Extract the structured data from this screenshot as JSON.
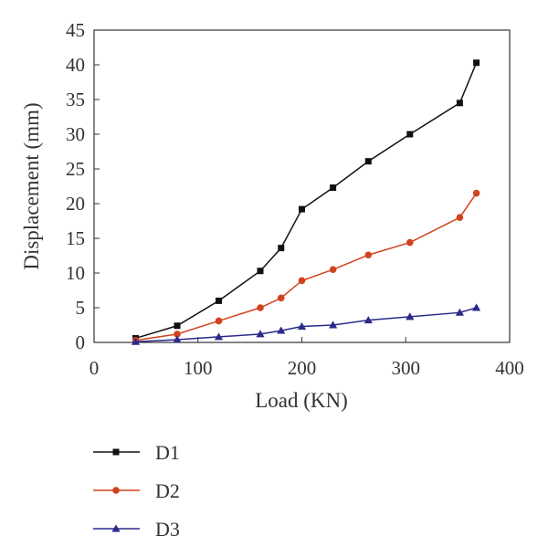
{
  "chart_data": {
    "type": "line",
    "xlabel": "Load (KN)",
    "ylabel": "Displacement (mm)",
    "xlim": [
      0,
      400
    ],
    "ylim": [
      0,
      45
    ],
    "xticks": [
      0,
      100,
      200,
      300,
      400
    ],
    "yticks": [
      0,
      5,
      10,
      15,
      20,
      25,
      30,
      35,
      40,
      45
    ],
    "grid": false,
    "legend_position": "bottom",
    "series": [
      {
        "name": "D1",
        "color": "#111111",
        "marker": "square",
        "x": [
          40,
          80,
          120,
          160,
          180,
          200,
          230,
          264,
          304,
          352,
          368
        ],
        "y": [
          0.6,
          2.4,
          6.0,
          10.3,
          13.6,
          19.2,
          22.3,
          26.1,
          30.0,
          34.5,
          40.3
        ]
      },
      {
        "name": "D2",
        "color": "#d0431e",
        "marker": "circle",
        "x": [
          40,
          80,
          120,
          160,
          180,
          200,
          230,
          264,
          304,
          352,
          368
        ],
        "y": [
          0.3,
          1.2,
          3.1,
          5.0,
          6.4,
          8.9,
          10.5,
          12.6,
          14.4,
          18.0,
          21.5
        ]
      },
      {
        "name": "D3",
        "color": "#2b2a8a",
        "marker": "triangle",
        "x": [
          40,
          80,
          120,
          160,
          180,
          200,
          230,
          264,
          304,
          352,
          368
        ],
        "y": [
          0.1,
          0.4,
          0.8,
          1.2,
          1.7,
          2.3,
          2.5,
          3.2,
          3.7,
          4.3,
          5.0
        ]
      }
    ]
  }
}
